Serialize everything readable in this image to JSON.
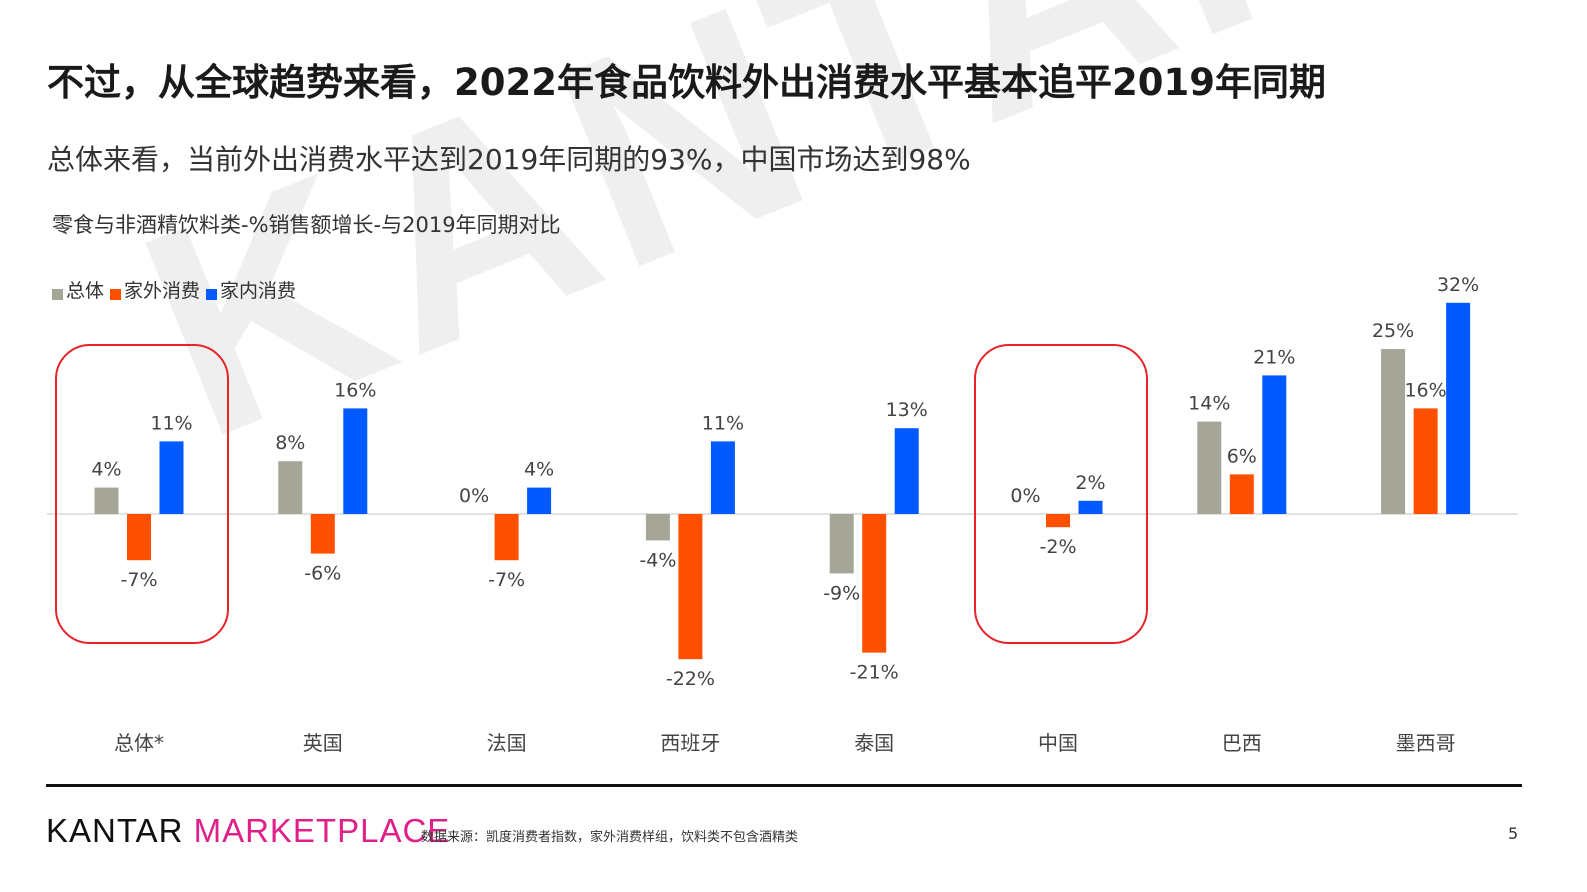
{
  "header": {
    "title": "不过，从全球趋势来看，2022年食品饮料外出消费水平基本追平2019年同期",
    "subtitle": "总体来看，当前外出消费水平达到2019年同期的93%，中国市场达到98%"
  },
  "watermark": "KANTAR",
  "legend": [
    {
      "name": "总体",
      "color": "#a6a698"
    },
    {
      "name": "家外消费",
      "color": "#ff5000"
    },
    {
      "name": "家内消费",
      "color": "#005aff"
    }
  ],
  "chart_data": {
    "type": "bar",
    "title": "零食与非酒精饮料类-%销售额增长-与2019年同期对比",
    "categories": [
      "总体*",
      "英国",
      "法国",
      "西班牙",
      "泰国",
      "中国",
      "巴西",
      "墨西哥"
    ],
    "series": [
      {
        "name": "总体",
        "color": "#a6a698",
        "values": [
          4,
          8,
          0,
          -4,
          -9,
          0,
          14,
          25
        ]
      },
      {
        "name": "家外消费",
        "color": "#ff5000",
        "values": [
          -7,
          -6,
          -7,
          -22,
          -21,
          -2,
          6,
          16
        ]
      },
      {
        "name": "家内消费",
        "color": "#005aff",
        "values": [
          11,
          16,
          4,
          11,
          13,
          2,
          21,
          32
        ]
      }
    ],
    "value_suffix": "%",
    "highlighted_categories": [
      "总体*",
      "中国"
    ],
    "highlight_color": "#e8232a",
    "ylim": [
      -25,
      35
    ],
    "grid": false,
    "legend_position": "top-left"
  },
  "footer": {
    "logo_part1": "KANTAR",
    "logo_part2": "MARKETPLACE",
    "source": "数据来源：凯度消费者指数，家外消费样组，饮料类不包含酒精类",
    "page_number": "5"
  }
}
